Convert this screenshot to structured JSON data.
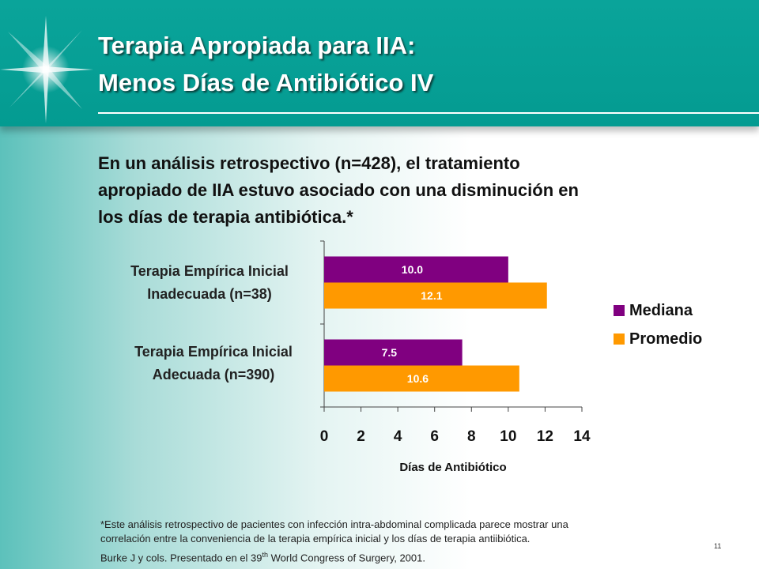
{
  "slide": {
    "title_line1": "Terapia Apropiada para IIA:",
    "title_line2": "Menos Días de Antibiótico IV",
    "intro_lines": [
      "En un análisis retrospectivo (n=428), el tratamiento",
      "apropiado de IIA estuvo asociado con una disminución en",
      "los días de terapia antibiótica.*"
    ],
    "footnote_lines": [
      "*Este análisis retrospectivo de pacientes con infección intra-abdominal complicada parece mostrar una",
      "correlación entre la conveniencia de la terapia empírica inicial y los días de terapia antiibiótica."
    ],
    "reference_pre": "Burke J y cols. Presentado en el 39",
    "reference_sup": "th",
    "reference_post": " World Congress of Surgery, 2001.",
    "page_number": "11"
  },
  "colors": {
    "mediana": "#800080",
    "promedio": "#ff9900",
    "header": "#049b91"
  },
  "chart_data": {
    "type": "bar",
    "orientation": "horizontal",
    "categories": [
      {
        "line1": "Terapia Empírica Inicial",
        "line2": "Inadecuada (n=38)"
      },
      {
        "line1": "Terapia Empírica Inicial",
        "line2": "Adecuada (n=390)"
      }
    ],
    "series": [
      {
        "name": "Mediana",
        "values": [
          10.0,
          7.5
        ],
        "labels": [
          "10.0",
          "7.5"
        ]
      },
      {
        "name": "Promedio",
        "values": [
          12.1,
          10.6
        ],
        "labels": [
          "12.1",
          "10.6"
        ]
      }
    ],
    "xlabel": "Días de Antibiótico",
    "xlim": [
      0,
      14
    ],
    "xticks": [
      "0",
      "2",
      "4",
      "6",
      "8",
      "10",
      "12",
      "14"
    ],
    "grid": false,
    "legend_position": "right"
  }
}
